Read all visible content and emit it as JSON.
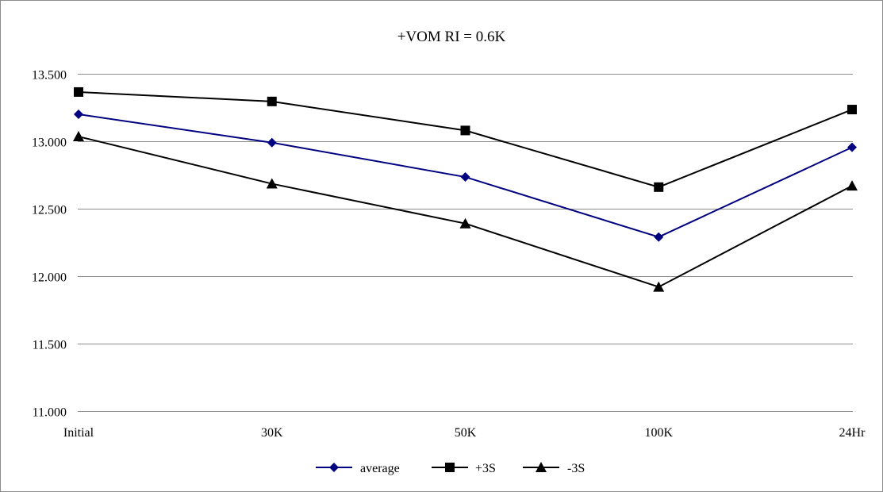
{
  "chart_data": {
    "type": "line",
    "title": "+VOM RI = 0.6K",
    "xlabel": "",
    "ylabel": "",
    "categories": [
      "Initial",
      "30K",
      "50K",
      "100K",
      "24Hr"
    ],
    "ylim": [
      11.0,
      13.5
    ],
    "yticks": [
      11.0,
      11.5,
      12.0,
      12.5,
      13.0,
      13.5
    ],
    "ytick_labels": [
      "11.000",
      "11.500",
      "12.000",
      "12.500",
      "13.000",
      "13.500"
    ],
    "grid": "horizontal",
    "legend_position": "bottom",
    "series": [
      {
        "name": "average",
        "color": "#000080",
        "marker": "diamond",
        "values": [
          13.2,
          12.99,
          12.735,
          12.29,
          12.955
        ]
      },
      {
        "name": "+3S",
        "color": "#000000",
        "marker": "square",
        "values": [
          13.365,
          13.295,
          13.08,
          12.66,
          13.235
        ]
      },
      {
        "name": "-3S",
        "color": "#000000",
        "marker": "triangle",
        "values": [
          13.035,
          12.685,
          12.39,
          11.92,
          12.67
        ]
      }
    ]
  }
}
